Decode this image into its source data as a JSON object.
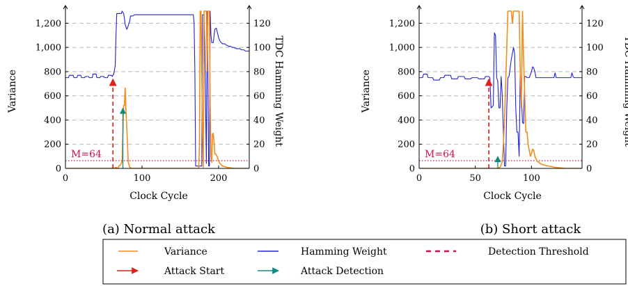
{
  "chart_data": [
    {
      "type": "line",
      "caption": "(a) Normal attack",
      "xlabel": "Clock Cycle",
      "ylabel": "Variance",
      "y2label": "TDC Hamming Weight",
      "xlim": [
        0,
        240
      ],
      "ylim": [
        0,
        1300
      ],
      "y2lim": [
        0,
        130
      ],
      "xticks": [
        "0",
        "100",
        "200"
      ],
      "yticks": [
        "0",
        "200",
        "400",
        "600",
        "800",
        "1,000",
        "1,200"
      ],
      "y2ticks": [
        "0",
        "20",
        "40",
        "60",
        "80",
        "100",
        "120"
      ],
      "grid": "horizontal dashed",
      "threshold": {
        "label": "M=64",
        "value": 64
      },
      "attack_start": {
        "x": 62,
        "y": 750
      },
      "attack_detection": {
        "x": 75,
        "y": 510
      },
      "series": [
        {
          "name": "Hamming Weight",
          "axis": "right",
          "color": "#2020d0",
          "x": [
            0,
            4,
            5,
            10,
            11,
            15,
            16,
            20,
            21,
            25,
            26,
            30,
            31,
            35,
            36,
            40,
            41,
            45,
            46,
            50,
            51,
            55,
            56,
            60,
            61,
            63,
            65,
            66,
            67,
            68,
            69,
            72,
            73,
            74,
            75,
            76,
            77,
            78,
            79,
            80,
            81,
            82,
            83,
            84,
            85,
            86,
            88,
            90,
            95,
            100,
            110,
            120,
            130,
            140,
            150,
            160,
            165,
            166,
            167,
            168,
            169,
            170,
            171,
            172,
            173,
            174,
            175,
            176,
            177,
            178,
            179,
            180,
            181,
            182,
            183,
            184,
            185,
            186,
            187,
            188,
            189,
            190,
            191,
            192,
            193,
            195,
            197,
            200,
            202,
            205,
            208,
            210,
            213,
            215,
            218,
            220,
            223,
            225,
            228,
            230,
            233,
            235,
            238,
            240
          ],
          "y": [
            75,
            75,
            77,
            77,
            75,
            75,
            77,
            77,
            75,
            75,
            76,
            76,
            75,
            75,
            78,
            78,
            75,
            75,
            76,
            76,
            75,
            75,
            77,
            77,
            76,
            78,
            85,
            110,
            128,
            128,
            128,
            128,
            128,
            130,
            129,
            128,
            124,
            119,
            117,
            115,
            116,
            118,
            120,
            122,
            126,
            126,
            126,
            127,
            127,
            127,
            127,
            127,
            127,
            127,
            127,
            127,
            127,
            127,
            127,
            120,
            80,
            2,
            2,
            2,
            2,
            2,
            2,
            2,
            2,
            2,
            127,
            127,
            127,
            100,
            50,
            4,
            130,
            80,
            2,
            2,
            130,
            110,
            104,
            104,
            104,
            115,
            116,
            108,
            105,
            103,
            103,
            102,
            101,
            101,
            100,
            100,
            99,
            99,
            99,
            98,
            98,
            97,
            97,
            97
          ]
        },
        {
          "name": "Variance",
          "axis": "left",
          "color": "#f28c1c",
          "x": [
            0,
            60,
            62,
            64,
            66,
            68,
            70,
            72,
            74,
            75,
            76,
            77,
            78,
            79,
            80,
            81,
            82,
            84,
            86,
            88,
            90,
            100,
            120,
            140,
            160,
            165,
            168,
            170,
            172,
            174,
            175,
            176,
            177,
            178,
            179,
            180,
            181,
            182,
            183,
            184,
            185,
            186,
            187,
            188,
            189,
            190,
            191,
            192,
            193,
            194,
            195,
            196,
            198,
            200,
            202,
            205,
            210,
            215,
            220,
            230,
            240
          ],
          "y": [
            0,
            0,
            5,
            0,
            10,
            0,
            20,
            30,
            60,
            300,
            520,
            520,
            665,
            480,
            350,
            200,
            50,
            10,
            0,
            0,
            0,
            0,
            0,
            0,
            0,
            0,
            0,
            0,
            0,
            0,
            200,
            1300,
            1300,
            800,
            300,
            10,
            1300,
            1300,
            1300,
            1300,
            800,
            1300,
            1300,
            1300,
            500,
            100,
            50,
            280,
            290,
            220,
            120,
            120,
            100,
            60,
            40,
            20,
            10,
            5,
            0,
            0,
            0
          ]
        }
      ]
    },
    {
      "type": "line",
      "caption": "(b) Short attack",
      "xlabel": "Clock Cycle",
      "ylabel": "Variance",
      "y2label": "TDC Hamming Weight",
      "xlim": [
        0,
        145
      ],
      "ylim": [
        0,
        1300
      ],
      "y2lim": [
        0,
        130
      ],
      "xticks": [
        "0",
        "50",
        "100"
      ],
      "yticks": [
        "0",
        "200",
        "400",
        "600",
        "800",
        "1,000",
        "1,200"
      ],
      "y2ticks": [
        "0",
        "20",
        "40",
        "60",
        "80",
        "100",
        "120"
      ],
      "grid": "horizontal dashed",
      "threshold": {
        "label": "M=64",
        "value": 64
      },
      "attack_start": {
        "x": 62,
        "y": 750
      },
      "attack_detection": {
        "x": 70,
        "y": 110
      },
      "series": [
        {
          "name": "Hamming Weight",
          "axis": "right",
          "color": "#2020d0",
          "x": [
            0,
            3,
            4,
            7,
            8,
            12,
            13,
            18,
            19,
            22,
            23,
            28,
            29,
            34,
            35,
            40,
            41,
            46,
            47,
            52,
            53,
            58,
            59,
            62,
            63,
            64,
            65,
            66,
            67,
            68,
            69,
            70,
            71,
            72,
            73,
            74,
            75,
            76,
            77,
            78,
            79,
            80,
            82,
            84,
            85,
            86,
            87,
            88,
            89,
            90,
            91,
            92,
            93,
            94,
            95,
            96,
            97,
            98,
            100,
            101,
            102,
            103,
            104,
            105,
            110,
            115,
            120,
            121,
            122,
            123,
            130,
            135,
            136,
            137,
            138,
            145
          ],
          "y": [
            75,
            75,
            78,
            78,
            75,
            75,
            73,
            73,
            75,
            75,
            77,
            77,
            74,
            74,
            76,
            76,
            74,
            74,
            75,
            75,
            74,
            74,
            76,
            76,
            75,
            50,
            51,
            52,
            112,
            110,
            75,
            72,
            50,
            50,
            76,
            60,
            30,
            2,
            2,
            50,
            75,
            76,
            90,
            100,
            95,
            50,
            30,
            30,
            10,
            80,
            60,
            38,
            37,
            76,
            76,
            75,
            75,
            75,
            80,
            84,
            83,
            80,
            75,
            75,
            75,
            75,
            75,
            79,
            75,
            75,
            75,
            75,
            79,
            76,
            75,
            75
          ]
        },
        {
          "name": "Variance",
          "axis": "left",
          "color": "#f28c1c",
          "x": [
            0,
            60,
            62,
            65,
            68,
            70,
            71,
            72,
            73,
            74,
            75,
            76,
            77,
            78,
            79,
            80,
            81,
            82,
            83,
            84,
            85,
            86,
            87,
            88,
            89,
            90,
            91,
            92,
            93,
            94,
            95,
            96,
            97,
            98,
            99,
            100,
            101,
            102,
            103,
            105,
            108,
            110,
            115,
            120,
            125,
            130,
            135,
            140,
            145
          ],
          "y": [
            0,
            0,
            0,
            0,
            0,
            0,
            5,
            10,
            30,
            60,
            200,
            400,
            700,
            1000,
            1300,
            1300,
            1300,
            1300,
            1200,
            1300,
            1300,
            1300,
            1300,
            1300,
            1300,
            800,
            500,
            1300,
            900,
            600,
            300,
            300,
            200,
            150,
            100,
            120,
            160,
            150,
            100,
            60,
            40,
            30,
            20,
            10,
            5,
            0,
            0,
            0,
            0
          ]
        }
      ]
    }
  ],
  "legend": {
    "items": [
      {
        "label": "Variance",
        "color": "#f28c1c",
        "style": "line"
      },
      {
        "label": "Hamming Weight",
        "color": "#2020d0",
        "style": "line"
      },
      {
        "label": "Detection Threshold",
        "color": "#c8104a",
        "style": "dashed"
      },
      {
        "label": "Attack Start",
        "color": "#e0201a",
        "style": "arrow"
      },
      {
        "label": "Attack Detection",
        "color": "#138a80",
        "style": "arrow"
      }
    ]
  },
  "colors": {
    "threshold": "#c8104a",
    "grid": "#b8b8b8",
    "attack_start": "#e0201a",
    "attack_detection": "#138a80"
  }
}
